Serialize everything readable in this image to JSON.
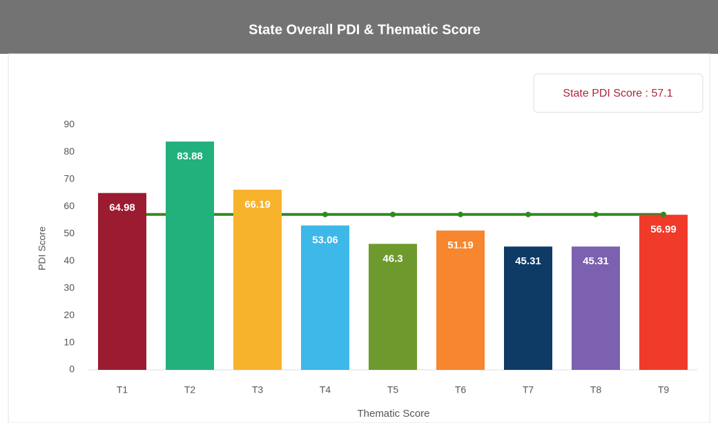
{
  "chart_data": {
    "type": "bar",
    "title": "State Overall PDI & Thematic Score",
    "pdi_label": "State PDI Score :",
    "pdi_score": 57.1,
    "x_label": "Thematic Score",
    "y_label": "PDI Score",
    "categories": [
      "T1",
      "T2",
      "T3",
      "T4",
      "T5",
      "T6",
      "T7",
      "T8",
      "T9"
    ],
    "values": [
      64.98,
      83.88,
      66.19,
      53.06,
      46.3,
      51.19,
      45.31,
      45.31,
      56.99
    ],
    "colors": [
      "#9b1b30",
      "#22b07d",
      "#f7b32b",
      "#3db8e8",
      "#6e9a2d",
      "#f7862e",
      "#0d3b66",
      "#7b61b0",
      "#f03a2a"
    ],
    "line_color": "#2e8b1e",
    "ylim": [
      0,
      90
    ],
    "yticks": [
      0,
      10,
      20,
      30,
      40,
      50,
      60,
      70,
      80,
      90
    ]
  }
}
